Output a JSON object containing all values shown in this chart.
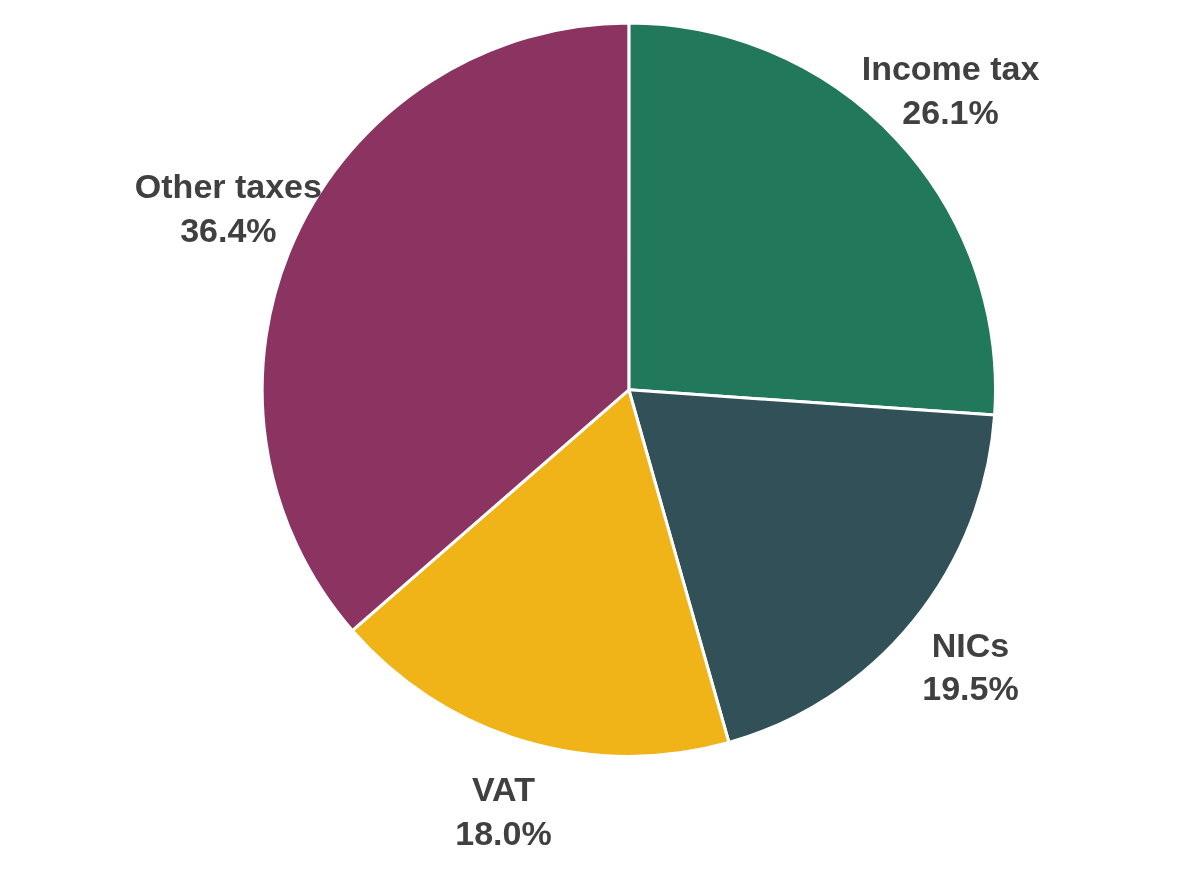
{
  "chart_data": {
    "type": "pie",
    "categories": [
      "Income tax",
      "NICs",
      "VAT",
      "Other taxes"
    ],
    "values": [
      26.1,
      19.5,
      18.0,
      36.4
    ],
    "value_labels": [
      "26.1%",
      "19.5%",
      "18.0%",
      "36.4%"
    ],
    "colors": [
      "#22785a",
      "#325058",
      "#f0b419",
      "#8b3461"
    ]
  }
}
